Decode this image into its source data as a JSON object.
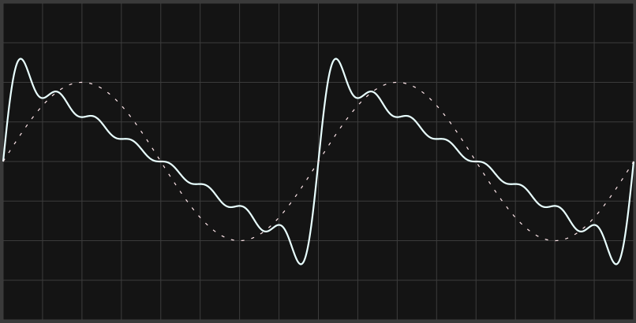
{
  "chart_data": {
    "type": "line",
    "title": "",
    "xlabel": "",
    "ylabel": "",
    "grid": true,
    "legend": "none",
    "xlim": [
      0,
      16
    ],
    "ylim": [
      -4,
      4
    ],
    "period": 8,
    "series": [
      {
        "kind": "sawtooth-fourier",
        "harmonics": 8,
        "amplitude": 3.1,
        "phase_shift": 0,
        "color": "#e9ffff",
        "line": "solid"
      },
      {
        "kind": "sine",
        "amplitude": 2.0,
        "phase_shift": 0,
        "color": "#ffe6ea",
        "line": "dashed"
      }
    ]
  },
  "colors": {
    "background": "#141414",
    "grid": "#3c3c3c",
    "frame": "#3a3a3a"
  }
}
